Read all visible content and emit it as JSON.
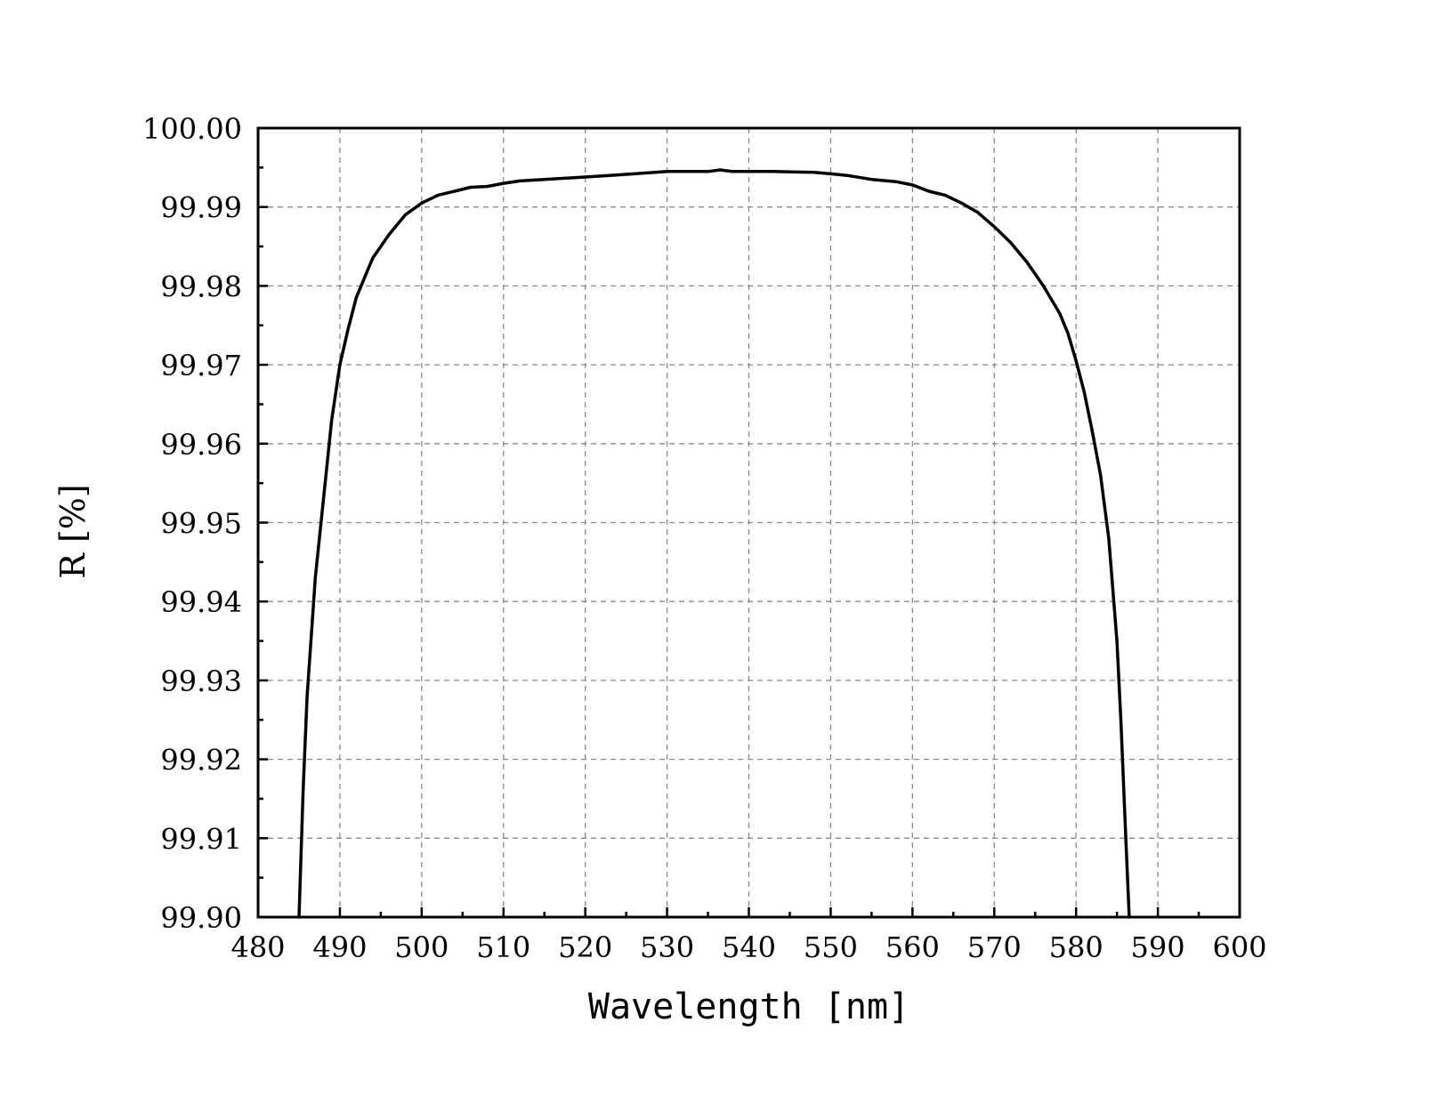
{
  "chart_data": {
    "type": "line",
    "title": "",
    "xlabel": "Wavelength [nm]",
    "ylabel": "R [%]",
    "xlim": [
      480,
      600
    ],
    "ylim": [
      99.9,
      100.0
    ],
    "x_ticks": [
      "480",
      "490",
      "500",
      "510",
      "520",
      "530",
      "540",
      "550",
      "560",
      "570",
      "580",
      "590",
      "600"
    ],
    "y_ticks": [
      "99.90",
      "99.91",
      "99.92",
      "99.93",
      "99.94",
      "99.95",
      "99.96",
      "99.97",
      "99.98",
      "99.99",
      "100.00"
    ],
    "grid": true,
    "series": [
      {
        "name": "",
        "color": "#000000",
        "x": [
          485.0,
          485.5,
          486.0,
          487.0,
          488.0,
          489.0,
          490.0,
          491.0,
          492.0,
          493.0,
          494.0,
          496.0,
          498.0,
          500.0,
          502.0,
          504.0,
          506.0,
          508.0,
          510.0,
          512.0,
          515.0,
          520.0,
          523.0,
          526.0,
          530.0,
          535.0,
          536.5,
          538.0,
          543.0,
          548.0,
          550.0,
          552.0,
          555.0,
          558.0,
          560.0,
          562.0,
          564.0,
          566.0,
          568.0,
          570.0,
          572.0,
          574.0,
          576.0,
          578.0,
          579.0,
          580.0,
          581.0,
          582.0,
          583.0,
          584.0,
          585.0,
          585.5,
          586.0,
          586.5
        ],
        "y": [
          99.9,
          99.916,
          99.928,
          99.943,
          99.953,
          99.963,
          99.97,
          99.9745,
          99.9785,
          99.981,
          99.9835,
          99.9865,
          99.989,
          99.9905,
          99.9915,
          99.992,
          99.9925,
          99.9926,
          99.993,
          99.9933,
          99.9935,
          99.9938,
          99.994,
          99.9942,
          99.9945,
          99.9945,
          99.9947,
          99.9945,
          99.9945,
          99.9944,
          99.9942,
          99.994,
          99.9935,
          99.9932,
          99.9928,
          99.992,
          99.9915,
          99.9905,
          99.9893,
          99.9875,
          99.9855,
          99.983,
          99.98,
          99.9765,
          99.974,
          99.9705,
          99.9665,
          99.9615,
          99.956,
          99.948,
          99.935,
          99.9245,
          99.912,
          99.9
        ]
      }
    ]
  }
}
